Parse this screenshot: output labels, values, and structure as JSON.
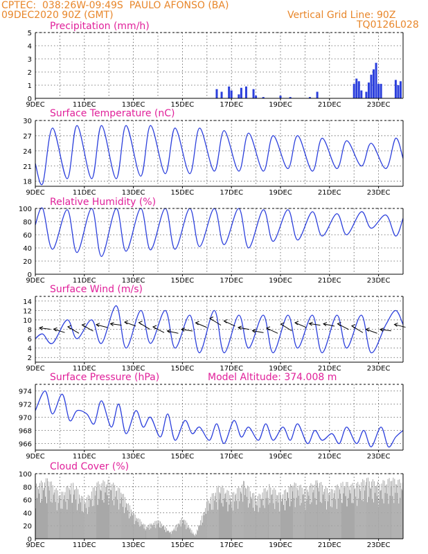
{
  "header": {
    "org_location": "CPTEC:  038:26W-09:49S  PAULO AFONSO (BA)",
    "run": "09DEC2020 90Z (GMT)",
    "vgrid": "Vertical Grid Line: 90Z",
    "code": "TQ0126L028"
  },
  "colors": {
    "header": "#e8862a",
    "title": "#e0209a",
    "line": "#2b3fdc",
    "bar": "#2b3fdc",
    "cloud": "#a8a8a8"
  },
  "chart_data": [
    {
      "type": "bar",
      "title": "Precipitation (mm/h)",
      "ylim": [
        0,
        5
      ],
      "yticks": [
        0,
        1,
        2,
        3,
        4,
        5
      ],
      "xticks": [
        "9DEC",
        "11DEC",
        "13DEC",
        "15DEC",
        "17DEC",
        "19DEC",
        "21DEC",
        "23DEC"
      ],
      "x_start_label": "9DEC",
      "x_range_days": [
        9,
        24
      ],
      "x": [
        16.4,
        16.6,
        16.9,
        17.0,
        17.3,
        17.4,
        17.6,
        17.9,
        18.0,
        18.3,
        19.0,
        19.4,
        20.2,
        20.5,
        22.0,
        22.1,
        22.2,
        22.3,
        22.5,
        22.6,
        22.7,
        22.8,
        22.9,
        23.0,
        23.1,
        23.7,
        23.8,
        23.9
      ],
      "values": [
        0.7,
        0.5,
        0.9,
        0.6,
        0.3,
        0.8,
        0.9,
        0.7,
        0.2,
        0.1,
        0.2,
        0.1,
        0.1,
        0.5,
        1.1,
        1.5,
        1.3,
        0.6,
        0.5,
        1.2,
        1.8,
        2.2,
        2.7,
        1.1,
        1.1,
        1.4,
        1.0,
        1.3
      ]
    },
    {
      "type": "line",
      "title": "Surface Temperature (nC)",
      "ylim": [
        17,
        30
      ],
      "yticks": [
        18,
        21,
        24,
        27,
        30
      ],
      "xticks": [
        "9DEC",
        "11DEC",
        "13DEC",
        "15DEC",
        "17DEC",
        "19DEC",
        "21DEC",
        "23DEC"
      ],
      "x_start_label": "9DEC",
      "x_range_days": [
        9,
        24
      ],
      "x": [
        9.0,
        9.3,
        9.7,
        10.3,
        10.7,
        11.3,
        11.7,
        12.3,
        12.7,
        13.3,
        13.7,
        14.3,
        14.7,
        15.3,
        15.7,
        16.3,
        16.7,
        17.3,
        17.7,
        18.3,
        18.7,
        19.3,
        19.7,
        20.3,
        20.7,
        21.3,
        21.7,
        22.3,
        22.7,
        23.3,
        23.7,
        24.0
      ],
      "values": [
        21.5,
        17.5,
        28.5,
        18.5,
        29,
        18.5,
        29,
        18.5,
        29,
        19,
        29,
        19.5,
        28.5,
        19.5,
        28.5,
        20,
        28,
        20,
        27.5,
        20,
        27,
        20.5,
        27,
        20,
        26.5,
        20.5,
        26,
        21,
        25.5,
        20.5,
        26.5,
        22.5
      ]
    },
    {
      "type": "line",
      "title": "Relative Humidity (%)",
      "ylim": [
        0,
        100
      ],
      "yticks": [
        0,
        20,
        40,
        60,
        80,
        100
      ],
      "xticks": [
        "9DEC",
        "11DEC",
        "13DEC",
        "15DEC",
        "17DEC",
        "19DEC",
        "21DEC",
        "23DEC"
      ],
      "x_start_label": "9DEC",
      "x_range_days": [
        9,
        24
      ],
      "x": [
        9.0,
        9.3,
        9.7,
        10.3,
        10.7,
        11.3,
        11.7,
        12.3,
        12.7,
        13.3,
        13.7,
        14.3,
        14.7,
        15.3,
        15.7,
        16.3,
        16.7,
        17.3,
        17.7,
        18.3,
        18.7,
        19.3,
        19.7,
        20.3,
        20.7,
        21.3,
        21.7,
        22.3,
        22.7,
        23.3,
        23.7,
        24.0
      ],
      "values": [
        75,
        100,
        38,
        98,
        33,
        100,
        27,
        100,
        35,
        100,
        37,
        100,
        38,
        100,
        42,
        100,
        45,
        100,
        40,
        98,
        50,
        98,
        52,
        95,
        58,
        92,
        60,
        95,
        70,
        90,
        58,
        85
      ]
    },
    {
      "type": "line",
      "title": "Surface Wind (m/s)",
      "ylim": [
        1,
        15
      ],
      "yticks": [
        2,
        4,
        6,
        8,
        10,
        12,
        14
      ],
      "xticks": [
        "9DEC",
        "11DEC",
        "13DEC",
        "15DEC",
        "17DEC",
        "19DEC",
        "21DEC",
        "23DEC"
      ],
      "x_start_label": "9DEC",
      "x_range_days": [
        9,
        24
      ],
      "x": [
        9.0,
        9.3,
        9.7,
        10.3,
        10.7,
        11.3,
        11.7,
        12.3,
        12.7,
        13.3,
        13.7,
        14.3,
        14.7,
        15.3,
        15.7,
        16.3,
        16.7,
        17.3,
        17.7,
        18.3,
        18.7,
        19.3,
        19.7,
        20.3,
        20.7,
        21.3,
        21.7,
        22.3,
        22.7,
        23.3,
        23.7,
        24.0
      ],
      "values": [
        6,
        7,
        5,
        10,
        6,
        10,
        5,
        13,
        4,
        12,
        5,
        12,
        4,
        11,
        3,
        12,
        3,
        11,
        4,
        11,
        3,
        11,
        4,
        11,
        3,
        11,
        4,
        11,
        3,
        9,
        12,
        9
      ],
      "vectors_label": "wind direction arrows"
    },
    {
      "type": "line",
      "title": "Surface Pressure (hPa)",
      "annotation": "Model Altitude: 374.008 m",
      "ylim": [
        965,
        975
      ],
      "yticks": [
        966,
        968,
        970,
        972,
        974
      ],
      "xticks": [
        "9DEC",
        "11DEC",
        "13DEC",
        "15DEC",
        "17DEC",
        "19DEC",
        "21DEC",
        "23DEC"
      ],
      "x_start_label": "9DEC",
      "x_range_days": [
        9,
        24
      ],
      "x": [
        9.0,
        9.4,
        9.7,
        10.1,
        10.4,
        10.7,
        11.1,
        11.4,
        11.7,
        12.1,
        12.4,
        12.7,
        13.1,
        13.4,
        13.7,
        14.1,
        14.4,
        14.7,
        15.1,
        15.4,
        15.7,
        16.1,
        16.4,
        16.7,
        17.1,
        17.4,
        17.7,
        18.1,
        18.4,
        18.7,
        19.1,
        19.4,
        19.7,
        20.1,
        20.4,
        20.7,
        21.1,
        21.4,
        21.7,
        22.1,
        22.4,
        22.7,
        23.1,
        23.4,
        23.7,
        24.0
      ],
      "values": [
        971,
        974,
        970.5,
        973.5,
        969.5,
        971,
        970.5,
        969,
        972.5,
        968.5,
        972,
        967.5,
        971,
        968.5,
        970,
        967,
        970.5,
        966.5,
        969.5,
        967.5,
        968.5,
        966.5,
        969,
        966,
        969.5,
        967,
        968.5,
        966.5,
        969,
        966.5,
        968.5,
        966.5,
        969,
        966,
        968,
        966.5,
        967.5,
        966,
        968.5,
        966,
        968,
        965.5,
        968.5,
        965.5,
        967,
        968
      ]
    },
    {
      "type": "area",
      "title": "Cloud Cover (%)",
      "ylim": [
        0,
        100
      ],
      "yticks": [
        0,
        20,
        40,
        60,
        80,
        100
      ],
      "xticks": [
        "9DEC",
        "11DEC",
        "13DEC",
        "15DEC",
        "17DEC",
        "19DEC",
        "21DEC",
        "23DEC"
      ],
      "x_start_label": "9DEC",
      "x_range_days": [
        9,
        24
      ],
      "x": [
        9.0,
        9.5,
        10.0,
        10.5,
        11.0,
        11.5,
        12.0,
        12.5,
        13.0,
        13.5,
        14.0,
        14.5,
        15.0,
        15.5,
        16.0,
        16.5,
        17.0,
        17.5,
        18.0,
        18.5,
        19.0,
        19.5,
        20.0,
        20.5,
        21.0,
        21.5,
        22.0,
        22.5,
        23.0,
        23.5,
        24.0
      ],
      "values": [
        85,
        95,
        70,
        90,
        60,
        88,
        92,
        75,
        40,
        20,
        30,
        10,
        35,
        5,
        60,
        85,
        70,
        90,
        65,
        85,
        70,
        88,
        80,
        92,
        75,
        90,
        85,
        95,
        88,
        95,
        90
      ]
    }
  ]
}
